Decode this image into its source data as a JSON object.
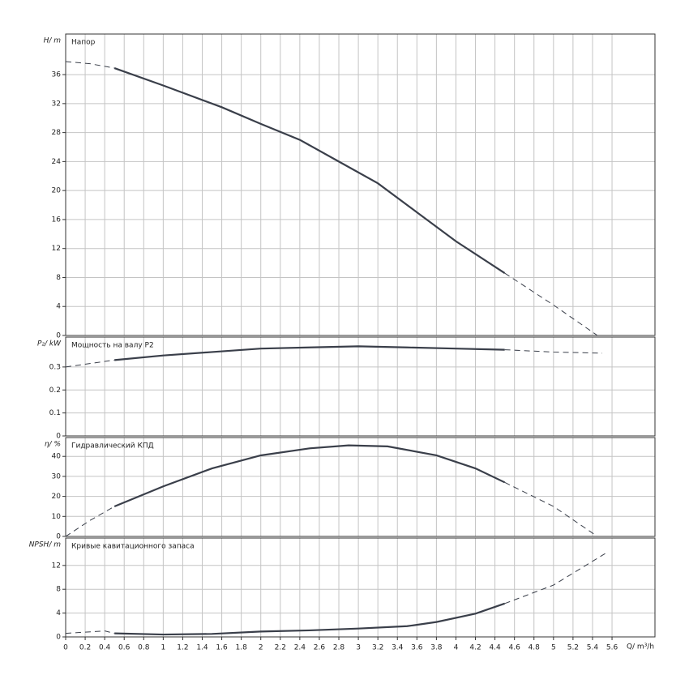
{
  "chart_data": {
    "type": "multi-panel-line",
    "x_label": "Q/ m³/h",
    "xlim": [
      0,
      6.04
    ],
    "xticks": [
      0,
      0.2,
      0.4,
      0.6,
      0.8,
      1,
      1.2,
      1.4,
      1.6,
      1.8,
      2,
      2.2,
      2.4,
      2.6,
      2.8,
      3,
      3.2,
      3.4,
      3.6,
      3.8,
      4,
      4.2,
      4.4,
      4.6,
      4.8,
      5,
      5.2,
      5.4,
      5.6
    ],
    "grid": true,
    "color": "#3a3f4a",
    "panels": [
      {
        "y_label": "H/ m",
        "title": "Напор",
        "ylim": [
          0,
          41.6
        ],
        "yticks": [
          0,
          4,
          8,
          12,
          16,
          20,
          24,
          28,
          32,
          36
        ],
        "series": [
          {
            "style": "dashed",
            "x": [
              0,
              0.25,
              0.5
            ],
            "values": [
              37.8,
              37.5,
              36.9
            ]
          },
          {
            "style": "solid",
            "x": [
              0.5,
              1,
              1.6,
              2,
              2.4,
              2.8,
              3.2,
              3.6,
              4,
              4.5
            ],
            "values": [
              36.9,
              34.5,
              31.5,
              29.2,
              27,
              24,
              21,
              17,
              13,
              8.6
            ]
          },
          {
            "style": "dashed",
            "x": [
              4.5,
              5,
              5.45
            ],
            "values": [
              8.6,
              4.2,
              0
            ]
          }
        ]
      },
      {
        "y_label": "P₂/ kW",
        "title": "Мощность на валу P2",
        "ylim": [
          0,
          0.43
        ],
        "yticks": [
          0,
          0.1,
          0.2,
          0.3
        ],
        "series": [
          {
            "style": "dashed",
            "x": [
              0,
              0.5
            ],
            "values": [
              0.3,
              0.33
            ]
          },
          {
            "style": "solid",
            "x": [
              0.5,
              1,
              1.5,
              2,
              2.5,
              3,
              3.5,
              4,
              4.5
            ],
            "values": [
              0.33,
              0.35,
              0.365,
              0.38,
              0.385,
              0.39,
              0.385,
              0.38,
              0.375
            ]
          },
          {
            "style": "dashed",
            "x": [
              4.5,
              5,
              5.5
            ],
            "values": [
              0.375,
              0.365,
              0.36
            ]
          }
        ]
      },
      {
        "y_label": "η/ %",
        "title": "Гидравлический КПД",
        "ylim": [
          0,
          49.4
        ],
        "yticks": [
          0,
          10,
          20,
          30,
          40
        ],
        "series": [
          {
            "style": "dashed",
            "x": [
              0,
              0.25,
              0.5
            ],
            "values": [
              0,
              8,
              15
            ]
          },
          {
            "style": "solid",
            "x": [
              0.5,
              1,
              1.5,
              2,
              2.5,
              2.9,
              3.3,
              3.8,
              4.2,
              4.5
            ],
            "values": [
              15,
              25,
              34,
              40.5,
              44,
              45.5,
              45,
              40.5,
              34,
              27
            ]
          },
          {
            "style": "dashed",
            "x": [
              4.5,
              5,
              5.45
            ],
            "values": [
              27,
              15,
              0
            ]
          }
        ]
      },
      {
        "y_label": "NPSH/ m",
        "title": "Кривые кавитационного запаса",
        "ylim": [
          0,
          16.6
        ],
        "yticks": [
          0,
          4,
          8,
          12
        ],
        "series": [
          {
            "style": "dashed",
            "x": [
              0,
              0.4,
              0.5
            ],
            "values": [
              0.6,
              1,
              0.6
            ]
          },
          {
            "style": "solid",
            "x": [
              0.5,
              1,
              1.5,
              2,
              2.5,
              3,
              3.5,
              3.8,
              4.2,
              4.5
            ],
            "values": [
              0.6,
              0.4,
              0.5,
              0.9,
              1.1,
              1.4,
              1.8,
              2.5,
              3.9,
              5.6
            ]
          },
          {
            "style": "dashed",
            "x": [
              4.5,
              5,
              5.55
            ],
            "values": [
              5.6,
              8.7,
              14.2
            ]
          }
        ]
      }
    ]
  }
}
